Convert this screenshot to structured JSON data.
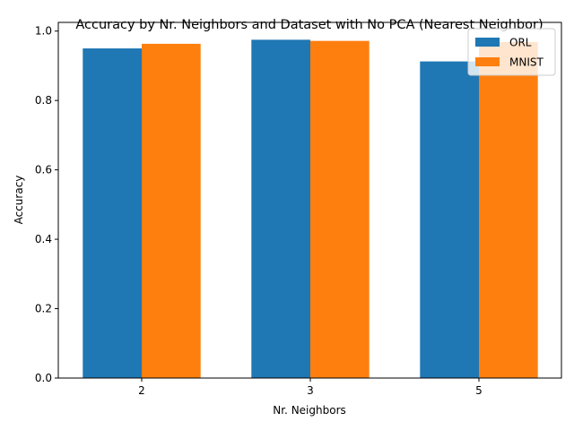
{
  "chart_data": {
    "type": "bar",
    "title": "Accuracy by Nr. Neighbors and Dataset with No PCA (Nearest Neighbor)",
    "xlabel": "Nr. Neighbors",
    "ylabel": "Accuracy",
    "categories": [
      "2",
      "3",
      "5"
    ],
    "series": [
      {
        "name": "ORL",
        "values": [
          0.95,
          0.975,
          0.9125
        ],
        "color": "#1f77b4"
      },
      {
        "name": "MNIST",
        "values": [
          0.9633,
          0.9717,
          0.9683
        ],
        "color": "#ff7f0e"
      }
    ],
    "ylim": [
      0,
      1.025
    ],
    "yticks": [
      0.0,
      0.2,
      0.4,
      0.6,
      0.8,
      1.0
    ],
    "ytick_labels": [
      "0.0",
      "0.2",
      "0.4",
      "0.6",
      "0.8",
      "1.0"
    ],
    "grid": false,
    "legend_position": "upper-right"
  }
}
